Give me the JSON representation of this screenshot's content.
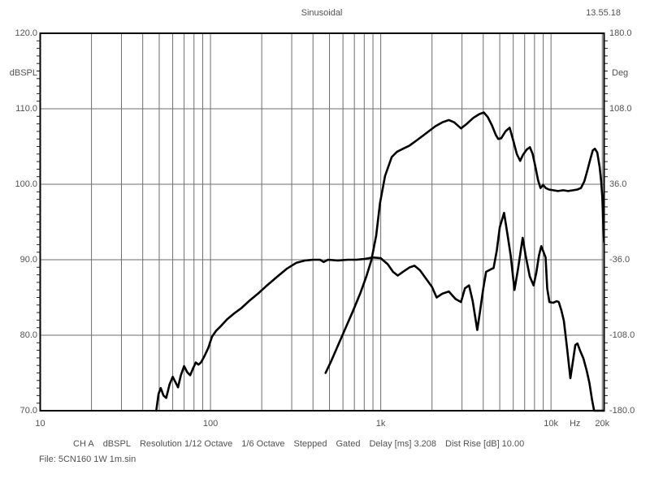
{
  "header": {
    "title": "Sinusoidal",
    "time": "13.55.18"
  },
  "axes": {
    "left": {
      "label": "dBSPL",
      "ticks": [
        "120.0",
        "110.0",
        "100.0",
        "90.0",
        "80.0",
        "70.0"
      ],
      "values": [
        120,
        110,
        100,
        90,
        80,
        70
      ]
    },
    "right": {
      "label": "Deg",
      "ticks": [
        "180.0",
        "108.0",
        "36.0",
        "-36.0",
        "-108.0",
        "-180.0"
      ],
      "values": [
        180,
        108,
        36,
        -36,
        -108,
        -180
      ]
    },
    "x": {
      "unit": "Hz",
      "ticks": [
        {
          "label": "10",
          "f": 10
        },
        {
          "label": "100",
          "f": 100
        },
        {
          "label": "1k",
          "f": 1000
        },
        {
          "label": "10k",
          "f": 10000
        },
        {
          "label": "20k",
          "f": 20000
        }
      ]
    }
  },
  "footer": {
    "status": [
      "CH A",
      "dBSPL",
      "Resolution 1/12 Octave",
      "1/6 Octave",
      "Stepped",
      "Gated",
      "Delay [ms] 3.208",
      "Dist Rise [dB] 10.00"
    ],
    "file": "File: 5CN160 1W 1m.sin"
  },
  "chart_data": {
    "type": "line",
    "title": "Sinusoidal",
    "timestamp": "13.55.18",
    "x_axis": {
      "scale": "log",
      "min": 10,
      "max": 20500,
      "unit": "Hz",
      "gridlines_at_decade_multiples": true
    },
    "y_left_axis": {
      "label": "dBSPL",
      "min": 70,
      "max": 120,
      "tick_step": 10,
      "minor_tick_step": 1
    },
    "y_right_axis": {
      "label": "Deg",
      "min": -180,
      "max": 180,
      "tick_step": 72
    },
    "grid": true,
    "legend": "none",
    "colors": {
      "curve": "#000000",
      "grid": "#6e6e6e",
      "border": "#000000",
      "text": "#515151",
      "background": "#ffffff"
    },
    "series": [
      {
        "name": "spl-curve-a",
        "unit": "dBSPL",
        "points": [
          [
            48,
            70
          ],
          [
            49.5,
            72.2
          ],
          [
            51,
            73
          ],
          [
            53,
            72
          ],
          [
            55,
            71.7
          ],
          [
            57.5,
            73.5
          ],
          [
            60,
            74.5
          ],
          [
            62.5,
            73.7
          ],
          [
            64.5,
            73.1
          ],
          [
            67,
            74.7
          ],
          [
            70,
            75.9
          ],
          [
            73,
            75.1
          ],
          [
            76,
            74.7
          ],
          [
            79,
            75.6
          ],
          [
            82,
            76.4
          ],
          [
            85,
            76.1
          ],
          [
            88,
            76.4
          ],
          [
            92,
            77.2
          ],
          [
            97,
            78.3
          ],
          [
            102,
            79.8
          ],
          [
            108,
            80.6
          ],
          [
            115,
            81.2
          ],
          [
            125,
            82.1
          ],
          [
            138,
            82.9
          ],
          [
            152,
            83.6
          ],
          [
            170,
            84.6
          ],
          [
            190,
            85.5
          ],
          [
            215,
            86.6
          ],
          [
            245,
            87.7
          ],
          [
            280,
            88.8
          ],
          [
            320,
            89.6
          ],
          [
            360,
            89.9
          ],
          [
            400,
            90
          ],
          [
            440,
            90
          ],
          [
            462,
            89.7
          ],
          [
            490,
            90
          ],
          [
            560,
            89.9
          ],
          [
            640,
            90
          ],
          [
            720,
            90
          ],
          [
            800,
            90.1
          ],
          [
            900,
            90.3
          ],
          [
            1000,
            90.2
          ],
          [
            1100,
            89.4
          ],
          [
            1180,
            88.4
          ],
          [
            1260,
            87.9
          ],
          [
            1350,
            88.4
          ],
          [
            1480,
            89
          ],
          [
            1580,
            89.2
          ],
          [
            1700,
            88.6
          ],
          [
            1900,
            87.1
          ],
          [
            2000,
            86.4
          ],
          [
            2130,
            85
          ],
          [
            2300,
            85.5
          ],
          [
            2510,
            85.8
          ],
          [
            2750,
            84.8
          ],
          [
            2960,
            84.4
          ],
          [
            3120,
            86.2
          ],
          [
            3300,
            86.6
          ],
          [
            3470,
            84.5
          ],
          [
            3690,
            80.7
          ],
          [
            3820,
            83
          ],
          [
            4000,
            86.2
          ],
          [
            4160,
            88.4
          ],
          [
            4400,
            88.7
          ],
          [
            4600,
            88.9
          ],
          [
            4800,
            91.2
          ],
          [
            5000,
            94.3
          ],
          [
            5300,
            96.2
          ],
          [
            5600,
            92.8
          ],
          [
            5800,
            90.5
          ],
          [
            6100,
            86
          ],
          [
            6400,
            88.8
          ],
          [
            6820,
            92.9
          ],
          [
            7100,
            90.5
          ],
          [
            7500,
            87.8
          ],
          [
            7900,
            86.6
          ],
          [
            8200,
            88.3
          ],
          [
            8500,
            90.6
          ],
          [
            8770,
            91.8
          ],
          [
            9290,
            90.3
          ],
          [
            9500,
            86.2
          ],
          [
            9790,
            84.4
          ],
          [
            10300,
            84.3
          ],
          [
            10800,
            84.5
          ],
          [
            11100,
            84.4
          ],
          [
            11500,
            83.3
          ],
          [
            11900,
            81.9
          ],
          [
            12400,
            78.5
          ],
          [
            13000,
            74.3
          ],
          [
            13400,
            76.3
          ],
          [
            13900,
            78.7
          ],
          [
            14300,
            78.9
          ],
          [
            14800,
            78
          ],
          [
            15500,
            76.9
          ],
          [
            16200,
            75.3
          ],
          [
            16800,
            73.7
          ],
          [
            17400,
            71.5
          ],
          [
            17900,
            70
          ],
          [
            20500,
            70
          ]
        ]
      },
      {
        "name": "spl-curve-b",
        "unit": "dBSPL",
        "points": [
          [
            474,
            75
          ],
          [
            510,
            76.5
          ],
          [
            560,
            78.6
          ],
          [
            620,
            80.9
          ],
          [
            690,
            83.3
          ],
          [
            760,
            85.6
          ],
          [
            823,
            87.8
          ],
          [
            880,
            89.9
          ],
          [
            940,
            93.2
          ],
          [
            990,
            97.5
          ],
          [
            1060,
            101.1
          ],
          [
            1160,
            103.6
          ],
          [
            1245,
            104.3
          ],
          [
            1350,
            104.7
          ],
          [
            1470,
            105.1
          ],
          [
            1600,
            105.7
          ],
          [
            1760,
            106.4
          ],
          [
            1910,
            107
          ],
          [
            2100,
            107.7
          ],
          [
            2300,
            108.2
          ],
          [
            2510,
            108.5
          ],
          [
            2700,
            108.2
          ],
          [
            2960,
            107.4
          ],
          [
            3200,
            108
          ],
          [
            3500,
            108.8
          ],
          [
            3800,
            109.3
          ],
          [
            4030,
            109.5
          ],
          [
            4250,
            108.9
          ],
          [
            4500,
            107.8
          ],
          [
            4750,
            106.5
          ],
          [
            4900,
            106
          ],
          [
            5100,
            106.1
          ],
          [
            5400,
            107
          ],
          [
            5720,
            107.5
          ],
          [
            6000,
            105.8
          ],
          [
            6300,
            104
          ],
          [
            6590,
            103.1
          ],
          [
            6850,
            103.9
          ],
          [
            7200,
            104.6
          ],
          [
            7520,
            104.9
          ],
          [
            7800,
            104
          ],
          [
            8100,
            102.3
          ],
          [
            8400,
            100.5
          ],
          [
            8670,
            99.5
          ],
          [
            9000,
            99.9
          ],
          [
            9300,
            99.5
          ],
          [
            9700,
            99.3
          ],
          [
            10300,
            99.2
          ],
          [
            11000,
            99.1
          ],
          [
            11800,
            99.2
          ],
          [
            12600,
            99.1
          ],
          [
            13500,
            99.2
          ],
          [
            14300,
            99.3
          ],
          [
            15000,
            99.5
          ],
          [
            15700,
            100.4
          ],
          [
            16300,
            101.7
          ],
          [
            17000,
            103.3
          ],
          [
            17600,
            104.5
          ],
          [
            18100,
            104.7
          ],
          [
            18700,
            104.2
          ],
          [
            19300,
            102.3
          ],
          [
            19700,
            100.4
          ],
          [
            20000,
            98.3
          ],
          [
            20300,
            94.5
          ],
          [
            20500,
            92.3
          ]
        ]
      }
    ]
  }
}
